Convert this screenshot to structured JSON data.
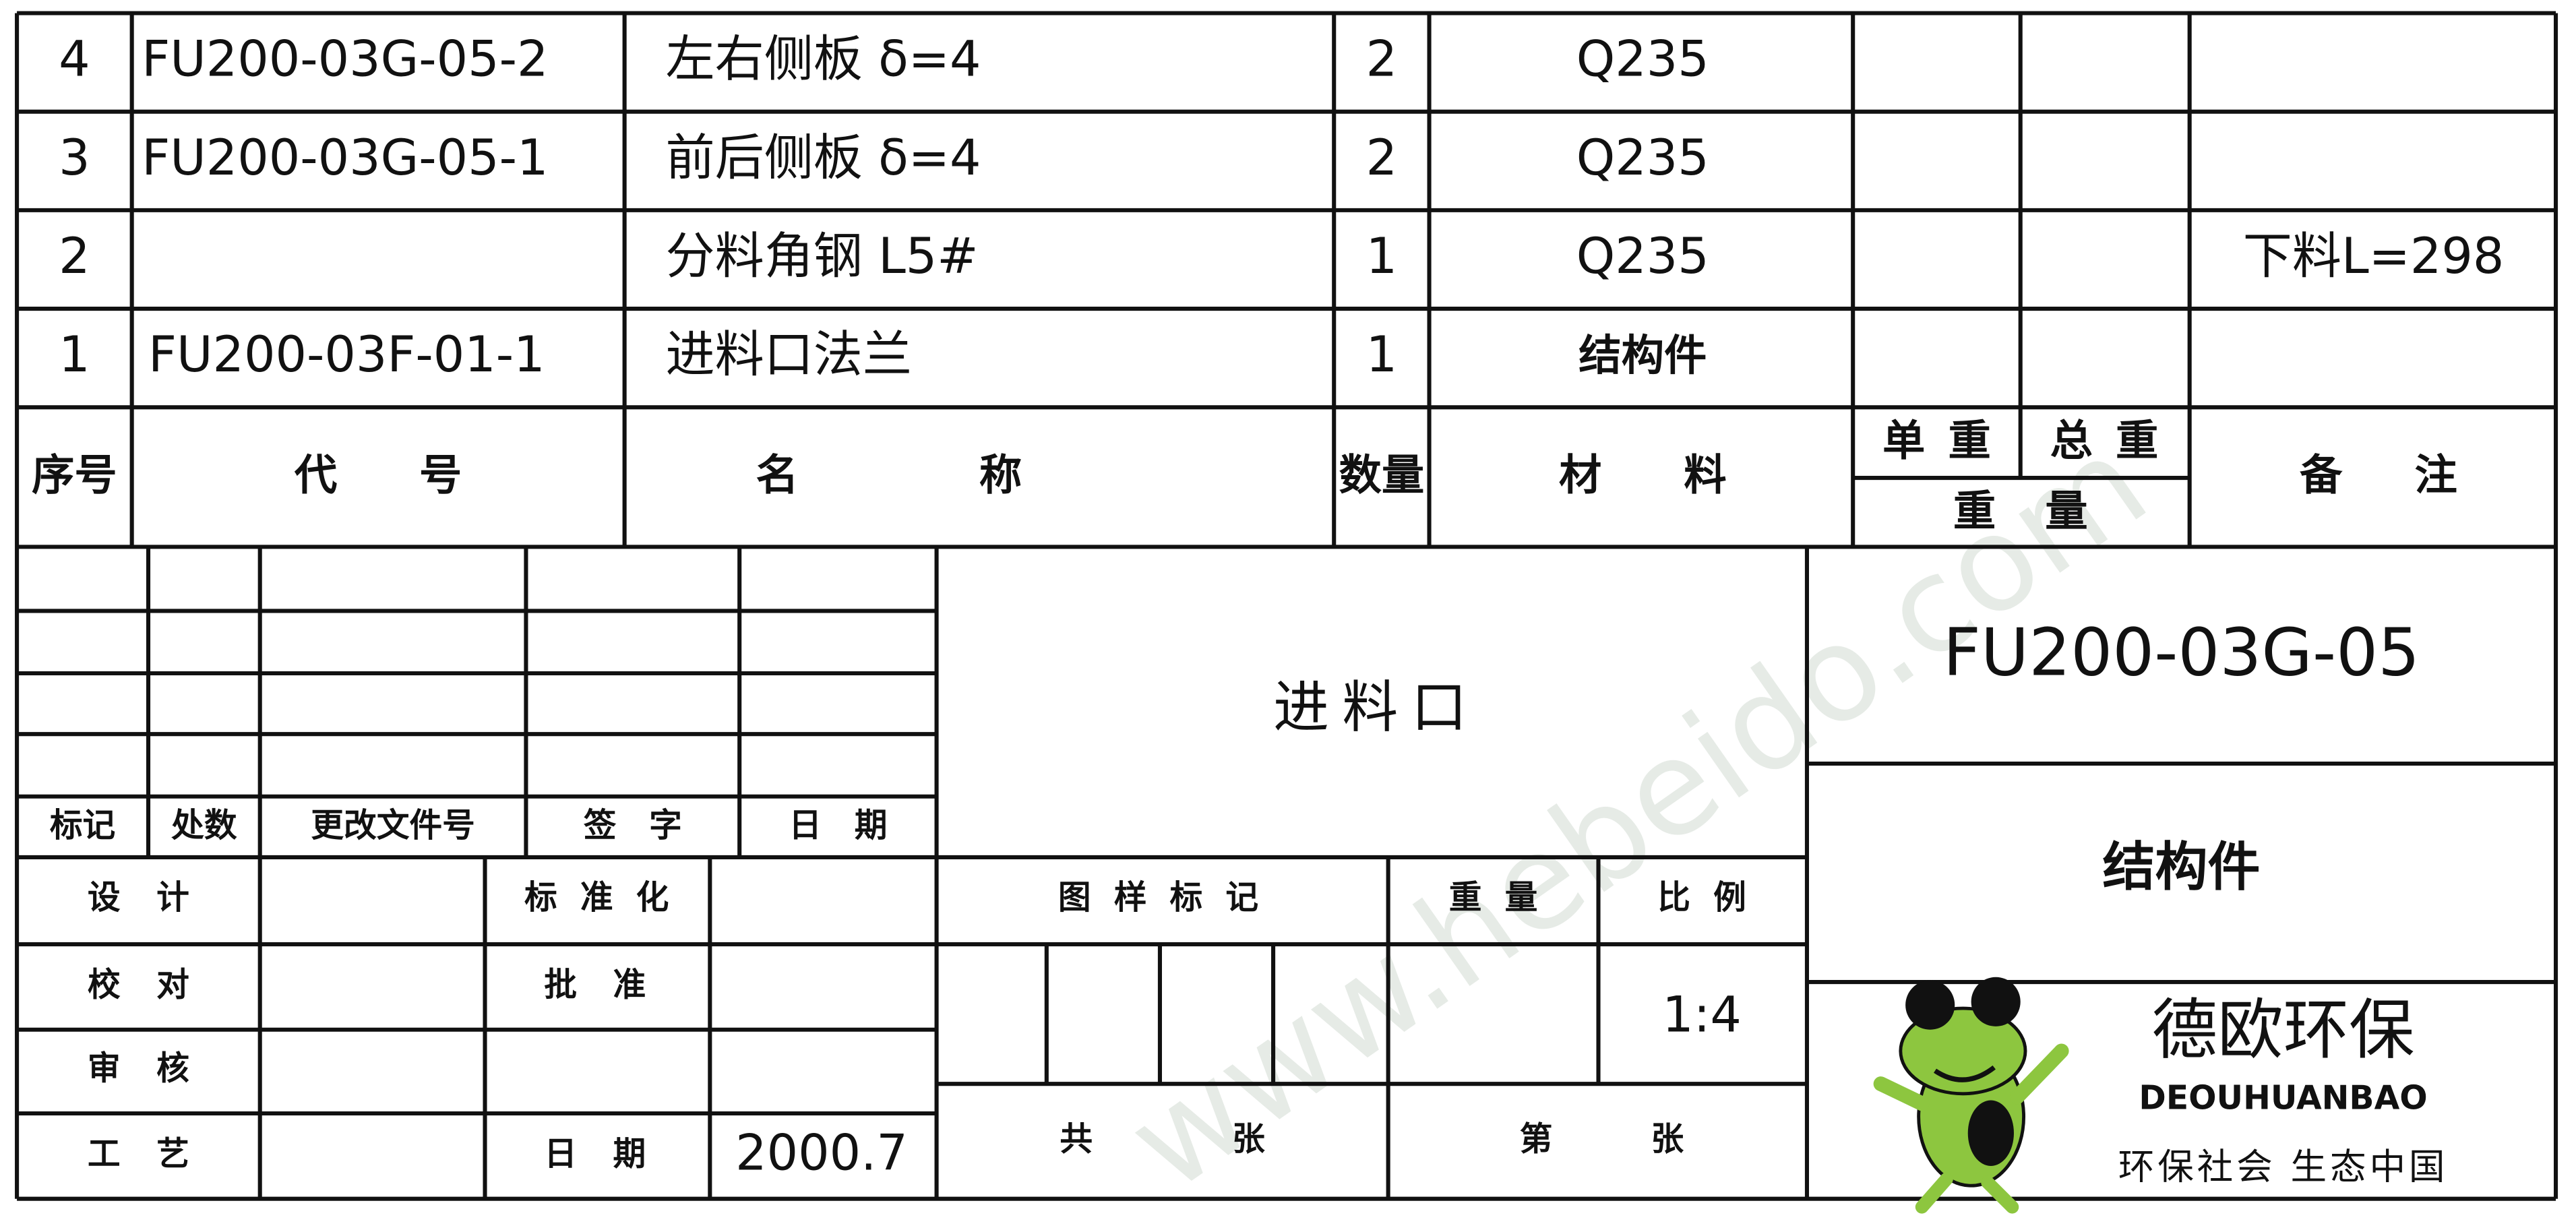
{
  "parts_list": {
    "rows": [
      {
        "no": "4",
        "code": "FU200-03G-05-2",
        "name": "左右侧板 δ=4",
        "qty": 2,
        "material": "Q235"
      },
      {
        "no": "3",
        "code": "FU200-03G-05-1",
        "name": "前后侧板 δ=4",
        "qty": 2,
        "material": "Q235"
      },
      {
        "no": "2",
        "name": "分料角钢 L5#",
        "qty": 1,
        "material": "Q235",
        "remark": "下料L=298"
      },
      {
        "no": "1",
        "code": "FU200-03F-01-1",
        "name": "进料口法兰",
        "qty": 1,
        "material": "结构件"
      }
    ],
    "header": {
      "no": "序号",
      "code": "代号",
      "name": "名称",
      "qty": "数量",
      "material": "材料",
      "unit_weight": "单重",
      "total_weight": "总重",
      "weight": "重量",
      "remark": "备注"
    }
  },
  "revision": {
    "mark": "标记",
    "count": "处数",
    "doc_no": "更改文件号",
    "signature": "签字",
    "date": "日期"
  },
  "approvals": {
    "design": "设计",
    "standardization": "标准化",
    "check": "校对",
    "approve": "批准",
    "review": "审核",
    "process": "工艺",
    "date_label": "日期",
    "date": "2000.7"
  },
  "title_block": {
    "title": "进料口",
    "pattern_mark": "图样标记",
    "weight": "重量",
    "scale_label": "比例",
    "scale": "1:4",
    "total": [
      "共",
      "张"
    ],
    "current": [
      "第",
      "张"
    ],
    "drawing_no": "FU200-03G-05",
    "category": "结构件"
  },
  "company": {
    "name": "德欧环保",
    "pinyin": "DEOUHUANBAO",
    "slogan": "环保社会 生态中国"
  },
  "watermark": "www.hebeido.com"
}
